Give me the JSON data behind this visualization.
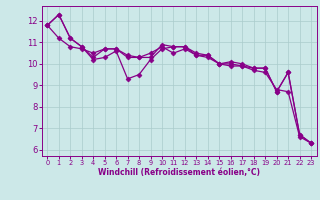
{
  "title": "",
  "xlabel": "Windchill (Refroidissement éolien,°C)",
  "ylabel": "",
  "bg_color": "#cce8e8",
  "line_color": "#880088",
  "marker": "D",
  "markersize": 2.5,
  "linewidth": 0.9,
  "xlim": [
    -0.5,
    23.5
  ],
  "ylim": [
    5.7,
    12.7
  ],
  "yticks": [
    6,
    7,
    8,
    9,
    10,
    11,
    12
  ],
  "xticks": [
    0,
    1,
    2,
    3,
    4,
    5,
    6,
    7,
    8,
    9,
    10,
    11,
    12,
    13,
    14,
    15,
    16,
    17,
    18,
    19,
    20,
    21,
    22,
    23
  ],
  "grid_color": "#aacccc",
  "series": [
    {
      "x": [
        0,
        1,
        2,
        3,
        4,
        5,
        6,
        7,
        8,
        9,
        10,
        11,
        12,
        13,
        14,
        15,
        16,
        17,
        18,
        19,
        20,
        21,
        22,
        23
      ],
      "y": [
        11.8,
        12.3,
        11.2,
        10.8,
        10.2,
        10.3,
        10.6,
        9.3,
        9.5,
        10.2,
        10.7,
        10.8,
        10.8,
        10.4,
        10.4,
        10.0,
        10.0,
        9.9,
        9.8,
        9.8,
        8.7,
        9.6,
        6.7,
        6.3
      ]
    },
    {
      "x": [
        0,
        1,
        2,
        3,
        4,
        5,
        6,
        7,
        8,
        9,
        10,
        11,
        12,
        13,
        14,
        15,
        16,
        17,
        18,
        19,
        20,
        21,
        22,
        23
      ],
      "y": [
        11.8,
        11.2,
        10.8,
        10.7,
        10.5,
        10.7,
        10.7,
        10.4,
        10.3,
        10.5,
        10.8,
        10.5,
        10.7,
        10.4,
        10.3,
        10.0,
        9.9,
        9.9,
        9.7,
        9.6,
        8.8,
        8.7,
        6.6,
        6.3
      ]
    },
    {
      "x": [
        0,
        1,
        2,
        3,
        4,
        5,
        6,
        7,
        8,
        9,
        10,
        11,
        12,
        13,
        14,
        15,
        16,
        17,
        18,
        19,
        20,
        21,
        22,
        23
      ],
      "y": [
        11.8,
        12.3,
        11.2,
        10.8,
        10.3,
        10.7,
        10.7,
        10.3,
        10.3,
        10.3,
        10.9,
        10.8,
        10.8,
        10.5,
        10.4,
        10.0,
        10.1,
        10.0,
        9.8,
        9.8,
        8.7,
        9.6,
        6.7,
        6.3
      ]
    }
  ]
}
